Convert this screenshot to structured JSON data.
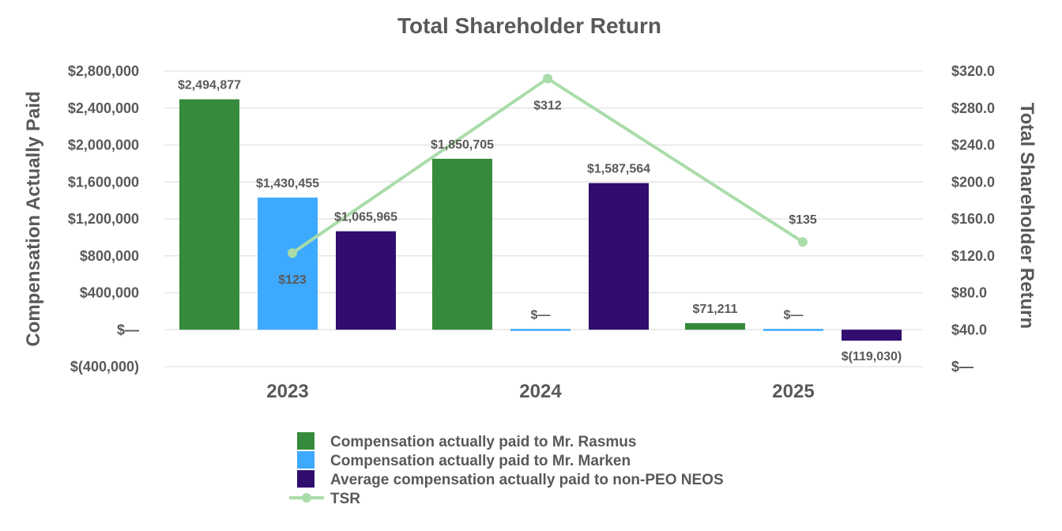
{
  "chart_data": {
    "type": "bar",
    "title": "Total Shareholder Return",
    "ylabel": "Compensation Actually Paid",
    "y2label": "Total Shareholder Return",
    "categories": [
      "2023",
      "2024",
      "2025"
    ],
    "ylim": [
      -400000,
      2800000
    ],
    "y2lim": [
      0,
      320
    ],
    "yticks": [
      {
        "value": 2800000,
        "label": "$2,800,000"
      },
      {
        "value": 2400000,
        "label": "$2,400,000"
      },
      {
        "value": 2000000,
        "label": "$2,000,000"
      },
      {
        "value": 1600000,
        "label": "$1,600,000"
      },
      {
        "value": 1200000,
        "label": "$1,200,000"
      },
      {
        "value": 800000,
        "label": "$800,000"
      },
      {
        "value": 400000,
        "label": "$400,000"
      },
      {
        "value": 0,
        "label": "$—"
      },
      {
        "value": -400000,
        "label": "$(400,000)"
      }
    ],
    "y2ticks": [
      {
        "value": 320,
        "label": "$320.0"
      },
      {
        "value": 280,
        "label": "$280.0"
      },
      {
        "value": 240,
        "label": "$240.0"
      },
      {
        "value": 200,
        "label": "$200.0"
      },
      {
        "value": 160,
        "label": "$160.0"
      },
      {
        "value": 120,
        "label": "$120.0"
      },
      {
        "value": 80,
        "label": "$80.0"
      },
      {
        "value": 40,
        "label": "$40.0"
      },
      {
        "value": 0,
        "label": "$—"
      }
    ],
    "grid": true,
    "legend_position": "bottom",
    "series": [
      {
        "name": "Compensation actually paid to Mr. Rasmus",
        "type": "bar",
        "color": "#358a3c",
        "values": [
          2494877,
          1850705,
          71211
        ],
        "labels": [
          "$2,494,877",
          "$1,850,705",
          "$71,211"
        ]
      },
      {
        "name": "Compensation actually paid to Mr. Marken",
        "type": "bar",
        "color": "#3eaaff",
        "values": [
          1430455,
          0,
          0
        ],
        "labels": [
          "$1,430,455",
          "$—",
          "$—"
        ]
      },
      {
        "name": "Average compensation actually paid to non-PEO NEOS",
        "type": "bar",
        "color": "#300d6e",
        "values": [
          1065965,
          1587564,
          -119030
        ],
        "labels": [
          "$1,065,965",
          "$1,587,564",
          "$(119,030)"
        ]
      },
      {
        "name": "TSR",
        "type": "line",
        "axis": "right",
        "color": "#aadcaa",
        "values": [
          123,
          312,
          135
        ],
        "labels": [
          "$123",
          "$312",
          "$135"
        ]
      }
    ]
  }
}
